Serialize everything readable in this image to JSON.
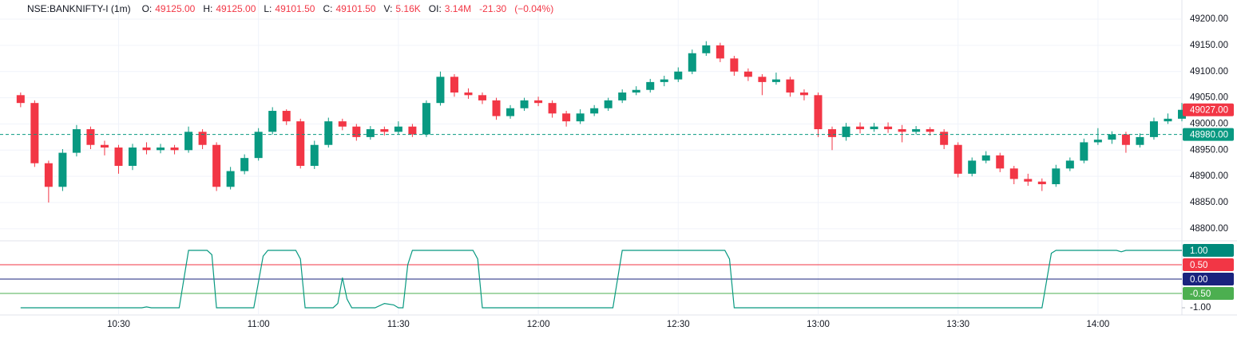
{
  "chart_data": [
    {
      "type": "candlestick",
      "title": "NSE:BANKNIFTY-I (1m)",
      "legend": [
        {
          "label": "O:",
          "value": "49125.00"
        },
        {
          "label": "H:",
          "value": "49125.00"
        },
        {
          "label": "L:",
          "value": "49101.50"
        },
        {
          "label": "C:",
          "value": "49101.50"
        },
        {
          "label": "V:",
          "value": "5.16K"
        },
        {
          "label": "OI:",
          "value": "3.14M"
        }
      ],
      "change": [
        "-21.30",
        "(−0.04%)"
      ],
      "up_color": "#089981",
      "down_color": "#f23645",
      "xlim": [
        "10:08",
        "14:18"
      ],
      "x": [
        "10:09",
        "10:12",
        "10:15",
        "10:18",
        "10:21",
        "10:24",
        "10:27",
        "10:30",
        "10:33",
        "10:36",
        "10:39",
        "10:42",
        "10:45",
        "10:48",
        "10:51",
        "10:54",
        "10:57",
        "11:00",
        "11:03",
        "11:06",
        "11:09",
        "11:12",
        "11:15",
        "11:18",
        "11:21",
        "11:24",
        "11:27",
        "11:30",
        "11:33",
        "11:36",
        "11:39",
        "11:42",
        "11:45",
        "11:48",
        "11:51",
        "11:54",
        "11:57",
        "12:00",
        "12:03",
        "12:06",
        "12:09",
        "12:12",
        "12:15",
        "12:18",
        "12:21",
        "12:24",
        "12:27",
        "12:30",
        "12:33",
        "12:36",
        "12:39",
        "12:42",
        "12:45",
        "12:48",
        "12:51",
        "12:54",
        "12:57",
        "13:00",
        "13:03",
        "13:06",
        "13:09",
        "13:12",
        "13:15",
        "13:18",
        "13:21",
        "13:24",
        "13:27",
        "13:30",
        "13:33",
        "13:36",
        "13:39",
        "13:42",
        "13:45",
        "13:48",
        "13:51",
        "13:54",
        "13:57",
        "14:00",
        "14:03",
        "14:06",
        "14:09",
        "14:12",
        "14:15",
        "14:18"
      ],
      "open": [
        49055,
        49040,
        48925,
        48880,
        48945,
        48990,
        48960,
        48955,
        48920,
        48955,
        48950,
        48955,
        48950,
        48985,
        48960,
        48880,
        48910,
        48935,
        48985,
        49025,
        49005,
        48920,
        48960,
        49005,
        48995,
        48975,
        48990,
        48985,
        48995,
        48980,
        49040,
        49090,
        49060,
        49055,
        49045,
        49015,
        49030,
        49045,
        49040,
        49020,
        49005,
        49020,
        49030,
        49045,
        49060,
        49065,
        49080,
        49085,
        49100,
        49135,
        49150,
        49125,
        49100,
        49090,
        49080,
        49085,
        49060,
        49055,
        48990,
        48975,
        48995,
        48990,
        48995,
        48990,
        48985,
        48990,
        48985,
        48960,
        48905,
        48930,
        48940,
        48915,
        48895,
        48890,
        48885,
        48915,
        48930,
        48965,
        48970,
        48980,
        48960,
        48975,
        49005,
        49010
      ],
      "high": [
        49060,
        49045,
        48930,
        48952,
        48998,
        48995,
        48968,
        48960,
        48962,
        48965,
        48962,
        48960,
        48995,
        48990,
        48965,
        48918,
        48942,
        48992,
        49032,
        49028,
        49010,
        48968,
        49012,
        49010,
        49000,
        48996,
        48995,
        49005,
        49000,
        49045,
        49100,
        49095,
        49068,
        49060,
        49050,
        49036,
        49050,
        49052,
        49045,
        49025,
        49028,
        49036,
        49050,
        49066,
        49072,
        49086,
        49092,
        49108,
        49142,
        49158,
        49155,
        49130,
        49106,
        49095,
        49098,
        49090,
        49066,
        49060,
        48995,
        49002,
        49003,
        49002,
        49003,
        48998,
        48996,
        48994,
        48990,
        48965,
        48936,
        48948,
        48945,
        48920,
        48905,
        48896,
        48922,
        48936,
        48972,
        48992,
        48986,
        48985,
        48982,
        49012,
        49020,
        49040
      ],
      "low": [
        49032,
        48918,
        48850,
        48872,
        48938,
        48952,
        48940,
        48905,
        48912,
        48942,
        48944,
        48942,
        48945,
        48952,
        48872,
        48875,
        48904,
        48930,
        48980,
        48998,
        48915,
        48914,
        48955,
        48988,
        48968,
        48970,
        48978,
        48980,
        48975,
        48975,
        49035,
        49052,
        49048,
        49038,
        49008,
        49010,
        49025,
        49034,
        49012,
        48995,
        49000,
        49015,
        49025,
        49040,
        49055,
        49060,
        49072,
        49080,
        49095,
        49130,
        49118,
        49092,
        49082,
        49055,
        49075,
        49052,
        49045,
        48975,
        48950,
        48968,
        48982,
        48985,
        48983,
        48965,
        48980,
        48978,
        48952,
        48898,
        48900,
        48925,
        48908,
        48885,
        48882,
        48872,
        48880,
        48910,
        48925,
        48960,
        48962,
        48945,
        48955,
        48970,
        49000,
        49005
      ],
      "close": [
        49040,
        48925,
        48880,
        48945,
        48990,
        48960,
        48955,
        48920,
        48955,
        48950,
        48955,
        48950,
        48985,
        48960,
        48880,
        48910,
        48935,
        48985,
        49025,
        49005,
        48920,
        48960,
        49005,
        48995,
        48975,
        48990,
        48985,
        48995,
        48980,
        49040,
        49090,
        49060,
        49055,
        49045,
        49015,
        49030,
        49045,
        49040,
        49020,
        49005,
        49020,
        49030,
        49045,
        49060,
        49065,
        49080,
        49085,
        49100,
        49135,
        49150,
        49125,
        49100,
        49090,
        49080,
        49085,
        49060,
        49055,
        48990,
        48975,
        48995,
        48990,
        48995,
        48990,
        48985,
        48990,
        48985,
        48960,
        48905,
        48930,
        48940,
        48915,
        48895,
        48890,
        48885,
        48915,
        48930,
        48965,
        48970,
        48980,
        48960,
        48975,
        49005,
        49010,
        49027
      ],
      "ylim": [
        48780,
        49229
      ],
      "yticks": [
        {
          "value": 48800,
          "label": "48800.00"
        },
        {
          "value": 48850,
          "label": "48850.00"
        },
        {
          "value": 48900,
          "label": "48900.00"
        },
        {
          "value": 48950,
          "label": "48950.00"
        },
        {
          "value": 49000,
          "label": "49000.00"
        },
        {
          "value": 49050,
          "label": "49050.00"
        },
        {
          "value": 49100,
          "label": "49100.00"
        },
        {
          "value": 49150,
          "label": "49150.00"
        },
        {
          "value": 49200,
          "label": "49200.00"
        }
      ],
      "last_price": {
        "value": 49027,
        "label": "49027.00",
        "color": "#f23645"
      },
      "reference_line": {
        "value": 48980,
        "label": "48980.00",
        "color": "#089981"
      },
      "grid": true
    },
    {
      "type": "line",
      "color": "#089981",
      "xlim": [
        "10:08",
        "14:18"
      ],
      "x": [
        "10:09",
        "10:35",
        "10:36",
        "10:37",
        "10:43",
        "10:45",
        "10:49",
        "10:50",
        "10:51",
        "10:59",
        "11:01",
        "11:02",
        "11:08",
        "11:09",
        "11:10",
        "11:16",
        "11:17",
        "11:18",
        "11:19",
        "11:20",
        "11:25",
        "11:27",
        "11:29",
        "11:30",
        "11:31",
        "11:32",
        "11:33",
        "11:46",
        "11:47",
        "11:48",
        "12:16",
        "12:18",
        "12:40",
        "12:41",
        "12:42",
        "13:48",
        "13:50",
        "13:51",
        "14:04",
        "14:05",
        "14:06",
        "14:18"
      ],
      "values": [
        -1,
        -1,
        -0.97,
        -1,
        -1,
        1,
        1,
        0.85,
        -1,
        -1,
        0.8,
        1,
        1,
        0.7,
        -1,
        -1,
        -0.85,
        0.05,
        -0.7,
        -1,
        -1,
        -0.85,
        -0.9,
        -1,
        -1,
        0.5,
        1,
        1,
        0.7,
        -1,
        -1,
        1,
        1,
        0.7,
        -1,
        -1,
        0.9,
        1,
        1,
        0.95,
        1,
        1
      ],
      "ylim": [
        -1.25,
        1.25
      ],
      "yticks": [
        {
          "value": -1,
          "label": "-1.00"
        }
      ],
      "levels": [
        {
          "value": 0.5,
          "label": "0.50",
          "color": "#f23645"
        },
        {
          "value": 0,
          "label": "0.00",
          "color": "#1a237e"
        },
        {
          "value": -0.5,
          "label": "-0.50",
          "color": "#4caf50"
        }
      ],
      "last_value": {
        "value": 1,
        "label": "1.00",
        "color": "#00897b"
      },
      "xticks": [
        "10:30",
        "11:00",
        "11:30",
        "12:00",
        "12:30",
        "13:00",
        "13:30",
        "14:00"
      ],
      "grid": true
    }
  ]
}
